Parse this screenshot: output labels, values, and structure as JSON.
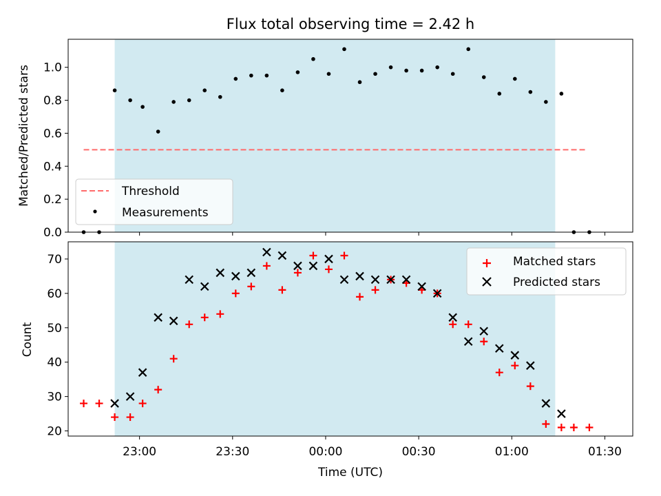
{
  "figure": {
    "title": "Flux total observing time = 2.42 h"
  },
  "colors": {
    "shade": "#add8e6",
    "threshold": "#ff6b6b",
    "measurement": "#000000",
    "matched": "#ff0000",
    "predicted": "#000000"
  },
  "chart_data": [
    {
      "type": "scatter",
      "panel": "top",
      "title": "Flux total observing time = 2.42 h",
      "xlabel": "",
      "ylabel": "Matched/Predicted stars",
      "xlim": [
        "22:37",
        "01:39"
      ],
      "ylim": [
        0,
        1.17
      ],
      "yticks": [
        0.0,
        0.2,
        0.4,
        0.6,
        0.8,
        1.0
      ],
      "yticklabels": [
        "0.0",
        "0.2",
        "0.4",
        "0.6",
        "0.8",
        "1.0"
      ],
      "shaded_region": [
        "22:52",
        "01:14"
      ],
      "legend_position": "lower left",
      "threshold": {
        "name": "Threshold",
        "style": "dashed",
        "y": 0.5,
        "x": [
          "22:42",
          "01:24"
        ]
      },
      "series": [
        {
          "name": "Measurements",
          "marker": "dot",
          "x": [
            "22:42",
            "22:47",
            "22:52",
            "22:57",
            "23:01",
            "23:06",
            "23:11",
            "23:16",
            "23:21",
            "23:26",
            "23:31",
            "23:36",
            "23:41",
            "23:46",
            "23:51",
            "23:56",
            "00:01",
            "00:06",
            "00:11",
            "00:16",
            "00:21",
            "00:26",
            "00:31",
            "00:36",
            "00:41",
            "00:46",
            "00:51",
            "00:56",
            "01:01",
            "01:06",
            "01:11",
            "01:16",
            "01:20",
            "01:25"
          ],
          "y": [
            0.0,
            0.0,
            0.86,
            0.8,
            0.76,
            0.61,
            0.79,
            0.8,
            0.86,
            0.82,
            0.93,
            0.95,
            0.95,
            0.86,
            0.97,
            1.05,
            0.96,
            1.11,
            0.91,
            0.96,
            1.0,
            0.98,
            0.98,
            1.0,
            0.96,
            1.11,
            0.94,
            0.84,
            0.93,
            0.85,
            0.79,
            0.84,
            0.0,
            0.0
          ]
        }
      ]
    },
    {
      "type": "scatter",
      "panel": "bottom",
      "xlabel": "Time (UTC)",
      "ylabel": "Count",
      "xlim": [
        "22:37",
        "01:39"
      ],
      "ylim": [
        18.5,
        75
      ],
      "yticks": [
        20,
        30,
        40,
        50,
        60,
        70
      ],
      "yticklabels": [
        "20",
        "30",
        "40",
        "50",
        "60",
        "70"
      ],
      "xticklabels": [
        "23:00",
        "23:30",
        "00:00",
        "00:30",
        "01:00",
        "01:30"
      ],
      "shaded_region": [
        "22:52",
        "01:14"
      ],
      "legend_position": "upper right",
      "series": [
        {
          "name": "Matched stars",
          "marker": "plus",
          "x": [
            "22:42",
            "22:47",
            "22:52",
            "22:57",
            "23:01",
            "23:06",
            "23:11",
            "23:16",
            "23:21",
            "23:26",
            "23:31",
            "23:36",
            "23:41",
            "23:46",
            "23:51",
            "23:56",
            "00:01",
            "00:06",
            "00:11",
            "00:16",
            "00:21",
            "00:26",
            "00:31",
            "00:36",
            "00:41",
            "00:46",
            "00:51",
            "00:56",
            "01:01",
            "01:06",
            "01:11",
            "01:16",
            "01:20",
            "01:25"
          ],
          "y": [
            28,
            28,
            24,
            24,
            28,
            32,
            41,
            51,
            53,
            54,
            60,
            62,
            68,
            61,
            66,
            71,
            67,
            71,
            59,
            61,
            64,
            63,
            61,
            60,
            51,
            51,
            46,
            37,
            39,
            33,
            22,
            21,
            21,
            21
          ]
        },
        {
          "name": "Predicted stars",
          "marker": "x",
          "x": [
            "22:52",
            "22:57",
            "23:01",
            "23:06",
            "23:11",
            "23:16",
            "23:21",
            "23:26",
            "23:31",
            "23:36",
            "23:41",
            "23:46",
            "23:51",
            "23:56",
            "00:01",
            "00:06",
            "00:11",
            "00:16",
            "00:21",
            "00:26",
            "00:31",
            "00:36",
            "00:41",
            "00:46",
            "00:51",
            "00:56",
            "01:01",
            "01:06",
            "01:11",
            "01:16"
          ],
          "y": [
            28,
            30,
            37,
            53,
            52,
            64,
            62,
            66,
            65,
            66,
            72,
            71,
            68,
            68,
            70,
            64,
            65,
            64,
            64,
            64,
            62,
            60,
            53,
            46,
            49,
            44,
            42,
            39,
            28,
            25
          ]
        }
      ]
    }
  ]
}
